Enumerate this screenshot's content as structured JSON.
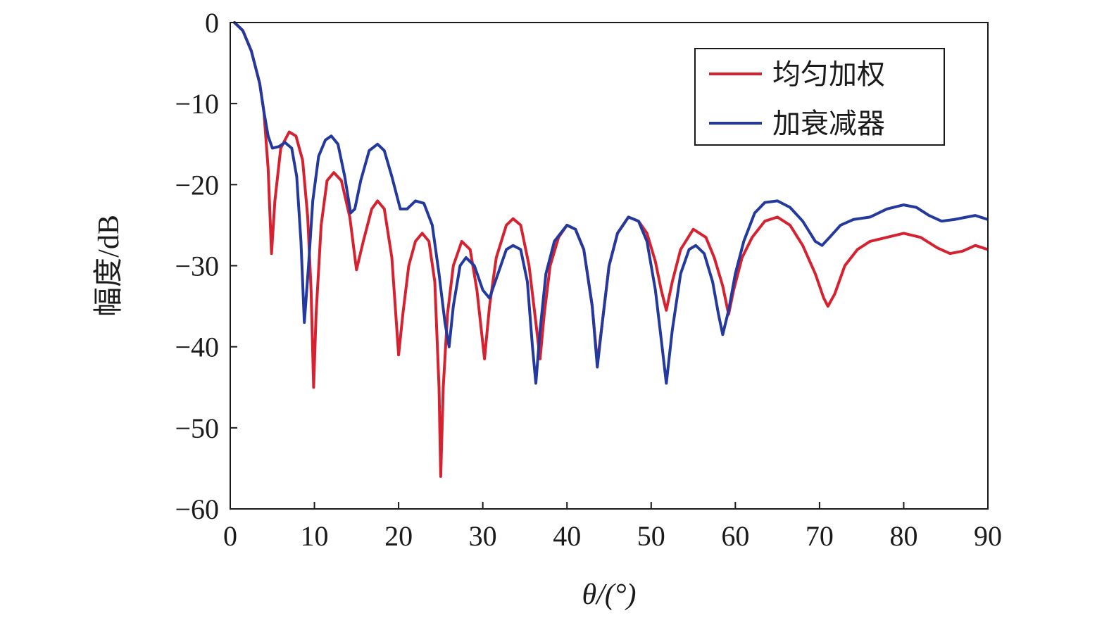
{
  "chart_data": {
    "type": "line",
    "xlabel": "θ/(°)",
    "ylabel": "幅度/dB",
    "xlim": [
      0,
      90
    ],
    "ylim": [
      -60,
      0
    ],
    "xticks": [
      0,
      10,
      20,
      30,
      40,
      50,
      60,
      70,
      80,
      90
    ],
    "yticks": [
      0,
      -10,
      -20,
      -30,
      -40,
      -50,
      -60
    ],
    "grid": false,
    "legend_position": "top-right",
    "series": [
      {
        "name": "均匀加权",
        "color": "#d62230",
        "points": [
          [
            0.5,
            0
          ],
          [
            1.5,
            -1
          ],
          [
            2.5,
            -3.5
          ],
          [
            3.5,
            -7.5
          ],
          [
            4.0,
            -11
          ],
          [
            4.5,
            -18
          ],
          [
            4.9,
            -28.5
          ],
          [
            5.3,
            -22
          ],
          [
            6.0,
            -15.5
          ],
          [
            7.0,
            -13.5
          ],
          [
            7.8,
            -14
          ],
          [
            8.6,
            -17
          ],
          [
            9.2,
            -24
          ],
          [
            9.6,
            -33
          ],
          [
            9.9,
            -45
          ],
          [
            10.2,
            -36
          ],
          [
            10.8,
            -25
          ],
          [
            11.5,
            -19.5
          ],
          [
            12.3,
            -18.5
          ],
          [
            13.2,
            -19.5
          ],
          [
            14.2,
            -24
          ],
          [
            15.0,
            -30.5
          ],
          [
            15.8,
            -27
          ],
          [
            16.8,
            -23
          ],
          [
            17.5,
            -22
          ],
          [
            18.3,
            -23
          ],
          [
            19.2,
            -29
          ],
          [
            20.0,
            -41
          ],
          [
            20.5,
            -36
          ],
          [
            21.2,
            -30
          ],
          [
            22.0,
            -27
          ],
          [
            22.8,
            -26
          ],
          [
            23.6,
            -27
          ],
          [
            24.3,
            -32
          ],
          [
            24.8,
            -45
          ],
          [
            25.0,
            -56
          ],
          [
            25.3,
            -45
          ],
          [
            25.8,
            -36
          ],
          [
            26.5,
            -30
          ],
          [
            27.5,
            -27
          ],
          [
            28.5,
            -28
          ],
          [
            29.3,
            -33
          ],
          [
            30.2,
            -41.5
          ],
          [
            30.8,
            -35
          ],
          [
            31.6,
            -29
          ],
          [
            32.8,
            -25
          ],
          [
            33.6,
            -24.2
          ],
          [
            34.5,
            -25
          ],
          [
            35.5,
            -30
          ],
          [
            36.3,
            -37
          ],
          [
            36.8,
            -41.5
          ],
          [
            37.3,
            -36
          ],
          [
            38.0,
            -30
          ],
          [
            39.0,
            -26.5
          ],
          [
            40.0,
            -25
          ],
          [
            41.0,
            -25.5
          ],
          [
            42.0,
            -28
          ],
          [
            43.0,
            -35
          ],
          [
            43.6,
            -42
          ],
          [
            44.2,
            -37
          ],
          [
            45.0,
            -30
          ],
          [
            46.0,
            -26
          ],
          [
            47.3,
            -24
          ],
          [
            48.5,
            -24.5
          ],
          [
            49.5,
            -26
          ],
          [
            50.5,
            -29.5
          ],
          [
            51.2,
            -33
          ],
          [
            51.8,
            -35.5
          ],
          [
            52.5,
            -32
          ],
          [
            53.5,
            -28
          ],
          [
            55.0,
            -25.5
          ],
          [
            56.5,
            -26.5
          ],
          [
            57.5,
            -29
          ],
          [
            58.5,
            -32.5
          ],
          [
            59.2,
            -36
          ],
          [
            59.8,
            -33
          ],
          [
            60.8,
            -29
          ],
          [
            62.0,
            -26.5
          ],
          [
            63.5,
            -24.5
          ],
          [
            65.0,
            -24
          ],
          [
            66.5,
            -25
          ],
          [
            68.0,
            -27.5
          ],
          [
            69.5,
            -31
          ],
          [
            70.5,
            -34
          ],
          [
            71.0,
            -35
          ],
          [
            71.8,
            -33.5
          ],
          [
            73.0,
            -30
          ],
          [
            74.5,
            -28
          ],
          [
            76.0,
            -27
          ],
          [
            78.0,
            -26.5
          ],
          [
            80.0,
            -26
          ],
          [
            82.0,
            -26.5
          ],
          [
            84.0,
            -27.8
          ],
          [
            85.5,
            -28.5
          ],
          [
            87.0,
            -28.2
          ],
          [
            88.5,
            -27.5
          ],
          [
            90.0,
            -28
          ]
        ]
      },
      {
        "name": "加衰减器",
        "color": "#24399e",
        "points": [
          [
            0.5,
            0
          ],
          [
            1.5,
            -1
          ],
          [
            2.5,
            -3.5
          ],
          [
            3.5,
            -7.5
          ],
          [
            4.0,
            -11
          ],
          [
            4.5,
            -14
          ],
          [
            5.0,
            -15.5
          ],
          [
            5.8,
            -15.3
          ],
          [
            6.5,
            -14.8
          ],
          [
            7.3,
            -15.5
          ],
          [
            7.9,
            -19
          ],
          [
            8.4,
            -27
          ],
          [
            8.8,
            -37
          ],
          [
            9.3,
            -30
          ],
          [
            9.8,
            -22
          ],
          [
            10.5,
            -16.5
          ],
          [
            11.3,
            -14.5
          ],
          [
            12.0,
            -14
          ],
          [
            12.8,
            -15
          ],
          [
            13.6,
            -19
          ],
          [
            14.3,
            -23.5
          ],
          [
            14.8,
            -23
          ],
          [
            15.5,
            -19.5
          ],
          [
            16.5,
            -15.8
          ],
          [
            17.5,
            -15
          ],
          [
            18.3,
            -15.8
          ],
          [
            19.2,
            -19
          ],
          [
            20.2,
            -23
          ],
          [
            21.0,
            -23
          ],
          [
            22.0,
            -22
          ],
          [
            23.0,
            -22.3
          ],
          [
            24.0,
            -25
          ],
          [
            24.8,
            -31
          ],
          [
            25.5,
            -37
          ],
          [
            26.0,
            -40
          ],
          [
            26.5,
            -35
          ],
          [
            27.3,
            -30
          ],
          [
            28.0,
            -29
          ],
          [
            29.0,
            -30
          ],
          [
            30.0,
            -33
          ],
          [
            30.8,
            -34
          ],
          [
            31.8,
            -31
          ],
          [
            32.8,
            -28
          ],
          [
            33.6,
            -27.5
          ],
          [
            34.5,
            -28
          ],
          [
            35.3,
            -32
          ],
          [
            35.9,
            -40
          ],
          [
            36.3,
            -44.5
          ],
          [
            36.8,
            -38
          ],
          [
            37.5,
            -31
          ],
          [
            38.5,
            -27
          ],
          [
            40.0,
            -25
          ],
          [
            41.0,
            -25.5
          ],
          [
            42.0,
            -28
          ],
          [
            43.0,
            -35
          ],
          [
            43.6,
            -42.5
          ],
          [
            44.2,
            -37
          ],
          [
            45.0,
            -30
          ],
          [
            46.0,
            -26
          ],
          [
            47.3,
            -24
          ],
          [
            48.5,
            -24.5
          ],
          [
            49.5,
            -27
          ],
          [
            50.5,
            -33
          ],
          [
            51.3,
            -40
          ],
          [
            51.8,
            -44.5
          ],
          [
            52.5,
            -38
          ],
          [
            53.5,
            -31
          ],
          [
            54.5,
            -28
          ],
          [
            55.3,
            -27.5
          ],
          [
            56.3,
            -28.5
          ],
          [
            57.3,
            -32
          ],
          [
            58.0,
            -36
          ],
          [
            58.5,
            -38.5
          ],
          [
            59.2,
            -35.5
          ],
          [
            60.0,
            -31
          ],
          [
            61.0,
            -27
          ],
          [
            62.3,
            -23.5
          ],
          [
            63.5,
            -22.2
          ],
          [
            65.0,
            -22
          ],
          [
            66.5,
            -22.8
          ],
          [
            68.0,
            -24.5
          ],
          [
            69.5,
            -27
          ],
          [
            70.3,
            -27.5
          ],
          [
            71.2,
            -26.5
          ],
          [
            72.5,
            -25
          ],
          [
            74.0,
            -24.3
          ],
          [
            76.0,
            -24
          ],
          [
            78.0,
            -23
          ],
          [
            80.0,
            -22.5
          ],
          [
            81.5,
            -22.8
          ],
          [
            83.0,
            -23.8
          ],
          [
            84.5,
            -24.5
          ],
          [
            86.0,
            -24.3
          ],
          [
            87.5,
            -24
          ],
          [
            88.5,
            -23.8
          ],
          [
            90.0,
            -24.3
          ]
        ]
      }
    ]
  }
}
